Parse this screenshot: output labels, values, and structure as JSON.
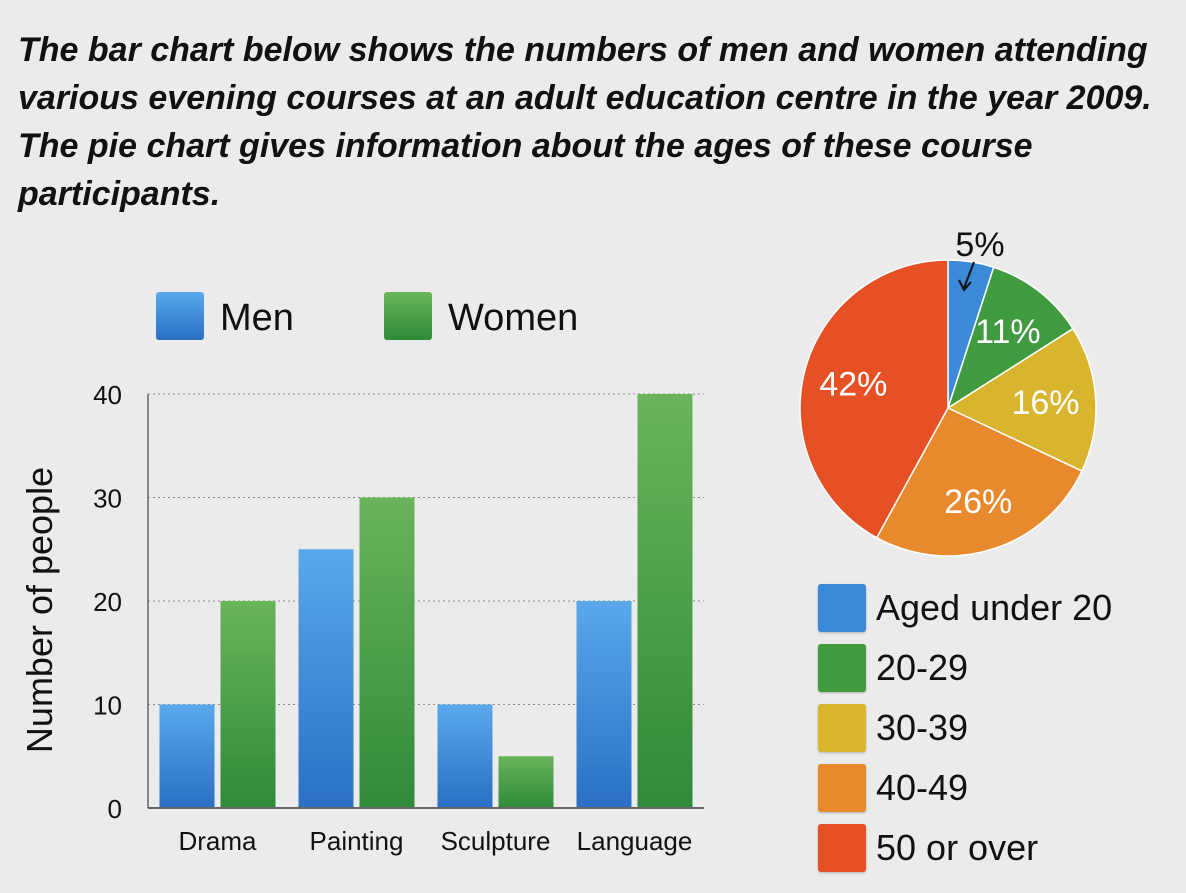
{
  "title": "The bar chart below shows the numbers of men and women attending various evening courses at an adult education centre in the year 2009. The pie chart gives information about the ages of these course participants.",
  "chart_data": [
    {
      "type": "bar",
      "title": "",
      "xlabel": "",
      "ylabel": "Number of people",
      "ylim": [
        0,
        40
      ],
      "yticks": [
        0,
        10,
        20,
        30,
        40
      ],
      "grid": true,
      "legend_position": "top",
      "categories": [
        "Drama",
        "Painting",
        "Sculpture",
        "Language"
      ],
      "series": [
        {
          "name": "Men",
          "values": [
            10,
            25,
            10,
            20
          ],
          "color": "#3a8ad8"
        },
        {
          "name": "Women",
          "values": [
            20,
            30,
            5,
            40
          ],
          "color": "#3f9a40"
        }
      ]
    },
    {
      "type": "pie",
      "title": "",
      "legend_position": "bottom",
      "slices": [
        {
          "label": "Aged under 20",
          "value": 5,
          "text": "5%",
          "color": "#3a8ad8"
        },
        {
          "label": "20-29",
          "value": 11,
          "text": "11%",
          "color": "#3f9a40"
        },
        {
          "label": "30-39",
          "value": 16,
          "text": "16%",
          "color": "#d9b52e"
        },
        {
          "label": "40-49",
          "value": 26,
          "text": "26%",
          "color": "#e8892e"
        },
        {
          "label": "50 or over",
          "value": 42,
          "text": "42%",
          "color": "#e55124"
        }
      ]
    }
  ]
}
